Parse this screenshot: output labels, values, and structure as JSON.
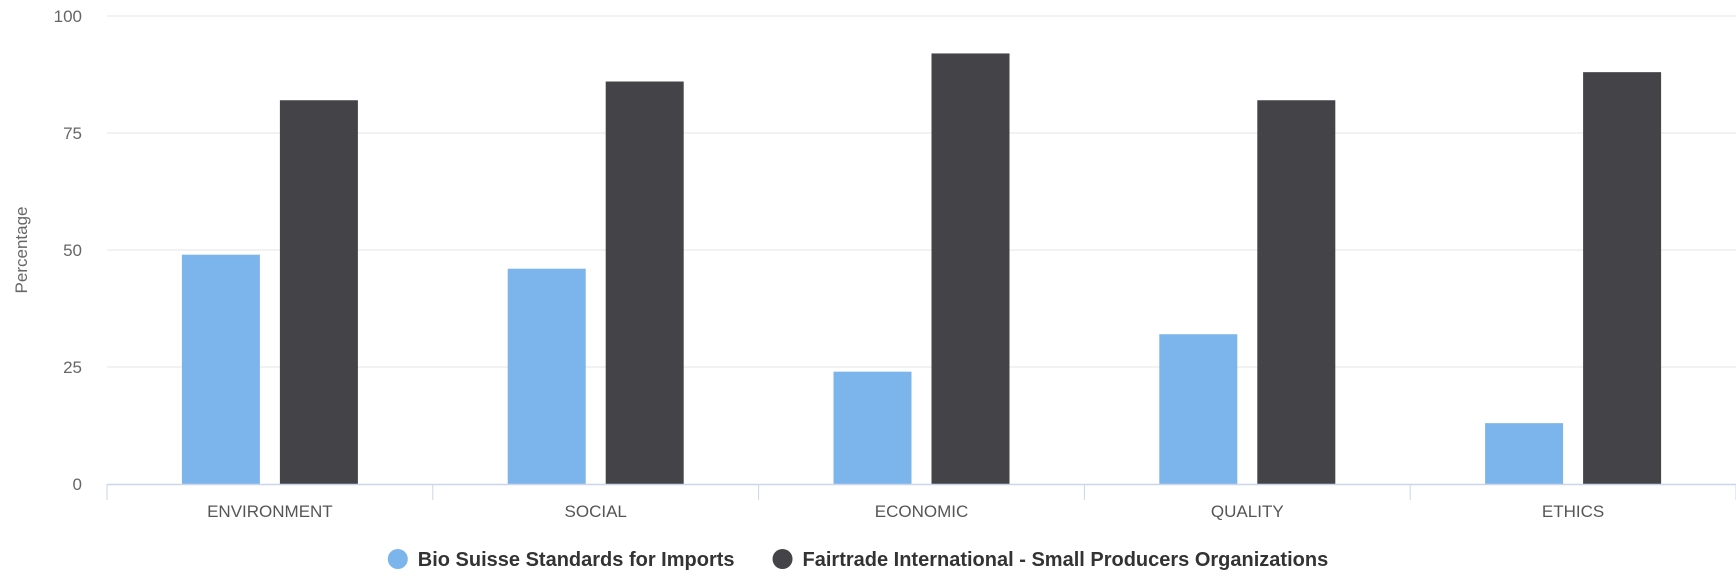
{
  "chart_data": {
    "type": "bar",
    "categories": [
      "ENVIRONMENT",
      "SOCIAL",
      "ECONOMIC",
      "QUALITY",
      "ETHICS"
    ],
    "series": [
      {
        "name": "Bio Suisse Standards for Imports",
        "color": "#7cb5ec",
        "values": [
          49,
          46,
          24,
          32,
          13
        ]
      },
      {
        "name": "Fairtrade International - Small Producers Organizations",
        "color": "#434348",
        "values": [
          82,
          86,
          92,
          82,
          88
        ]
      }
    ],
    "title": "",
    "xlabel": "",
    "ylabel": "Percentage",
    "ylim": [
      0,
      100
    ],
    "yticks": [
      0,
      25,
      50,
      75,
      100
    ],
    "grid": true,
    "legend_position": "bottom-center"
  }
}
